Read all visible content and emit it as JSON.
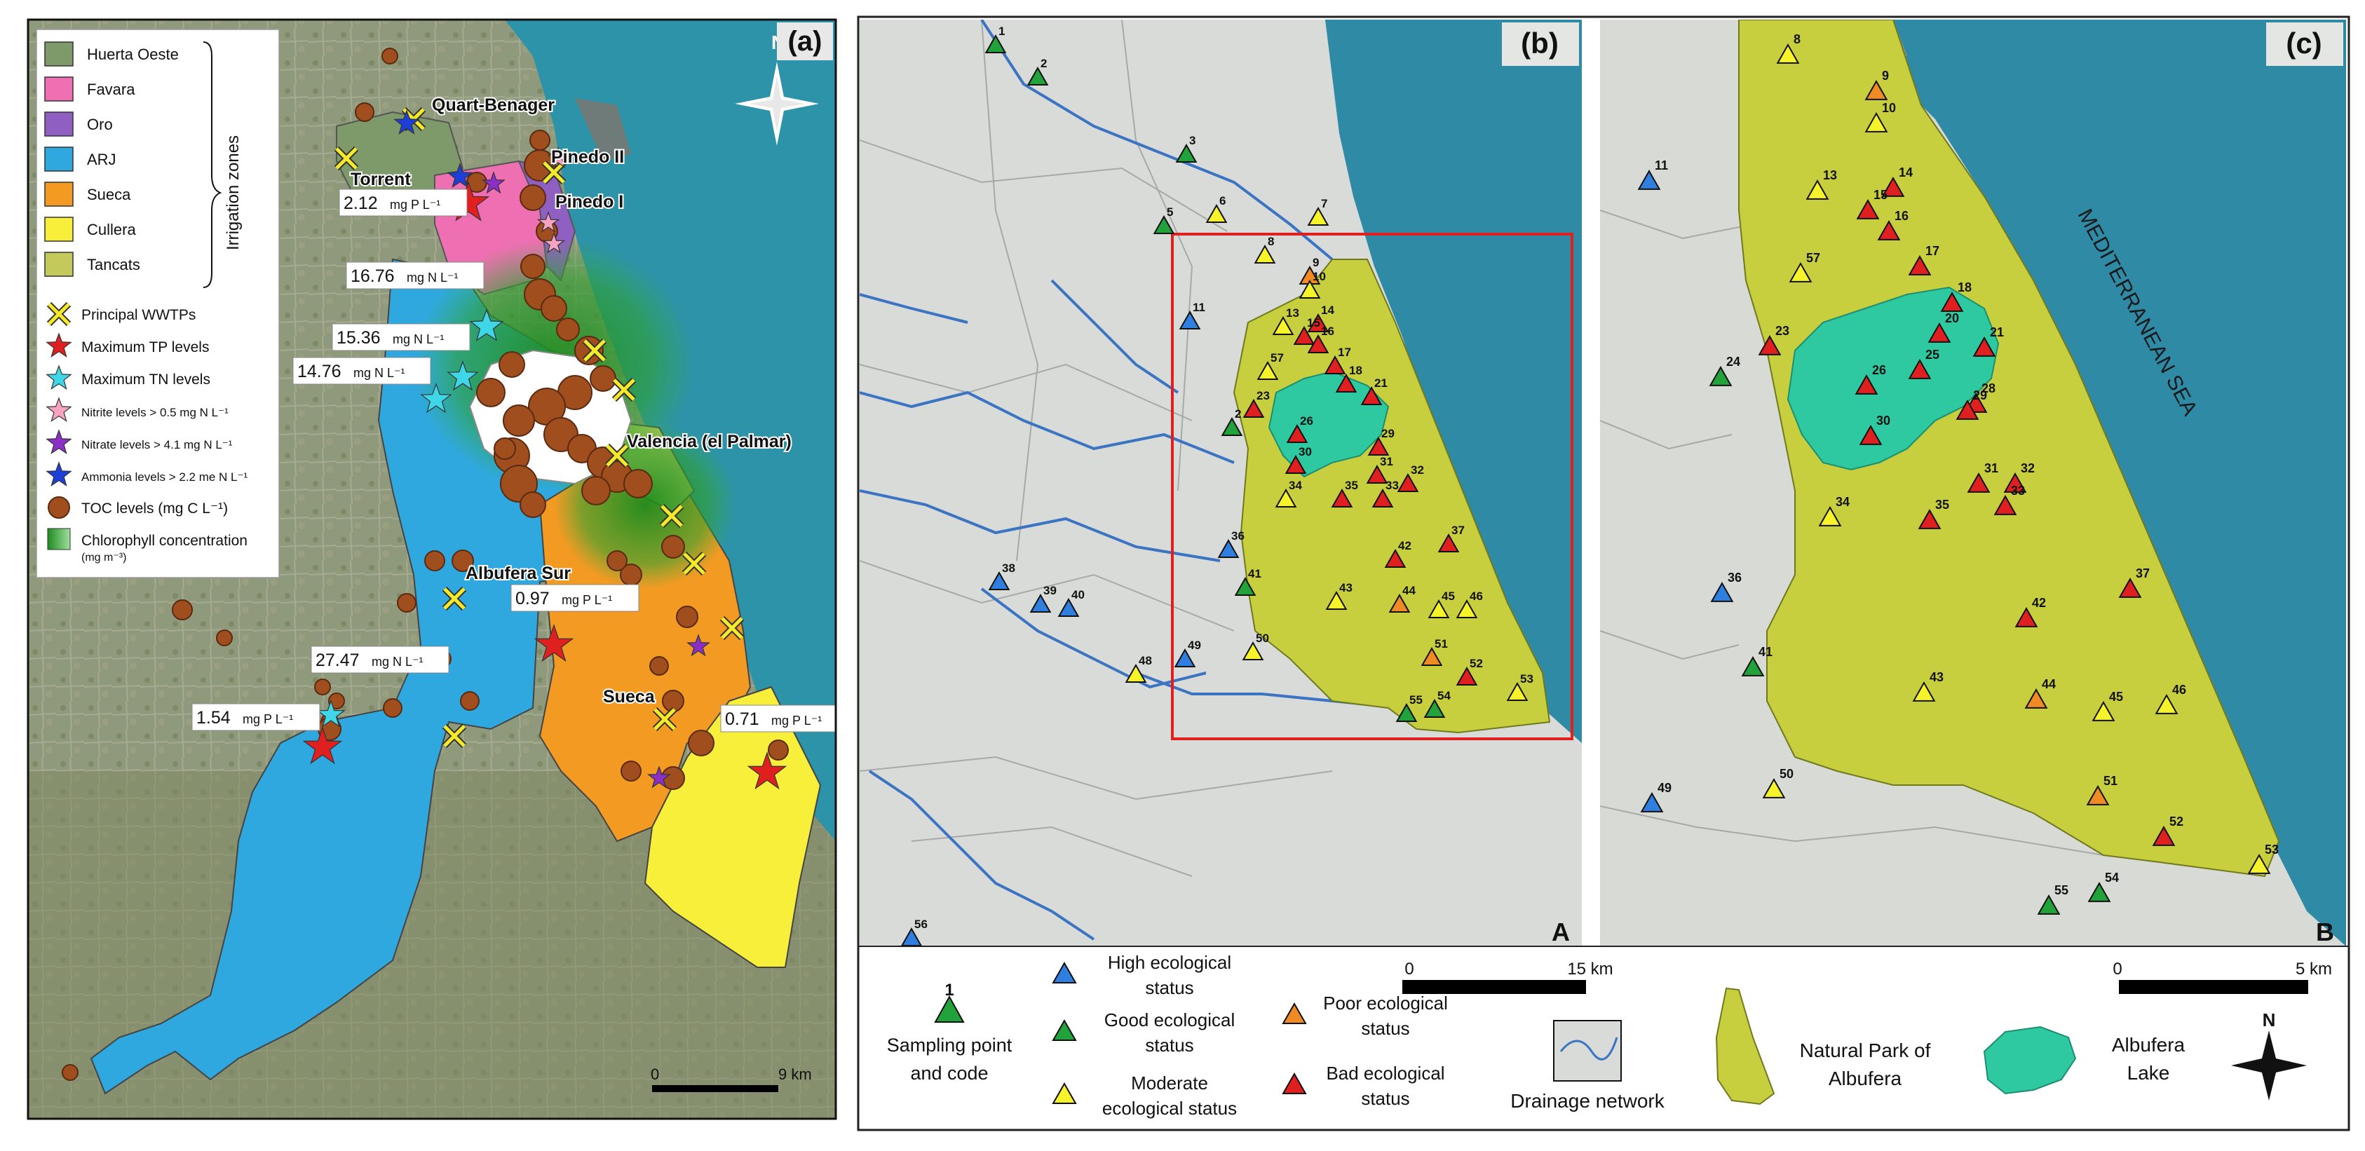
{
  "panels": {
    "a": {
      "label": "(a)",
      "north": "N",
      "scale": {
        "start": "0",
        "end": "9 km"
      },
      "legend": {
        "zones_title": "Irrigation zones",
        "zones": [
          {
            "name": "Huerta Oeste",
            "color": "#7f9a6a"
          },
          {
            "name": "Favara",
            "color": "#ef6fb3"
          },
          {
            "name": "Oro",
            "color": "#8f5fc2"
          },
          {
            "name": "ARJ",
            "color": "#2fa8e0"
          },
          {
            "name": "Sueca",
            "color": "#f39a23"
          },
          {
            "name": "Cullera",
            "color": "#f7ef3a"
          },
          {
            "name": "Tancats",
            "color": "#c3c95a"
          }
        ],
        "symbols": [
          {
            "label": "Principal WWTPs",
            "icon": "yellow-cross"
          },
          {
            "label": "Maximum TP levels",
            "icon": "red-star"
          },
          {
            "label": "Maximum TN levels",
            "icon": "cyan-star"
          },
          {
            "label": "Nitrite levels > 0.5 mg N L⁻¹",
            "icon": "pink-star"
          },
          {
            "label": "Nitrate levels > 4.1 mg N L⁻¹",
            "icon": "purple-star"
          },
          {
            "label": "Ammonia levels > 2.2 me N L⁻¹",
            "icon": "blue-star"
          },
          {
            "label": "TOC levels (mg C L⁻¹)",
            "icon": "brown-circle"
          },
          {
            "label": "Chlorophyll concentration",
            "label2": "(mg m⁻³)",
            "icon": "green-swatch"
          }
        ]
      },
      "places": [
        "Quart-Benager",
        "Torrent",
        "Pinedo II",
        "Pinedo I",
        "Valencia (el Palmar)",
        "Albufera Sur",
        "Sueca"
      ],
      "values": [
        {
          "value": "2.12",
          "unit": "mg P L⁻¹"
        },
        {
          "value": "16.76",
          "unit": "mg N L⁻¹"
        },
        {
          "value": "15.36",
          "unit": "mg N L⁻¹"
        },
        {
          "value": "14.76",
          "unit": "mg N L⁻¹"
        },
        {
          "value": "0.97",
          "unit": "mg P L⁻¹"
        },
        {
          "value": "27.47",
          "unit": "mg N L⁻¹"
        },
        {
          "value": "1.54",
          "unit": "mg P L⁻¹"
        },
        {
          "value": "0.71",
          "unit": "mg P L⁻¹"
        }
      ]
    },
    "b": {
      "label": "(b)",
      "corner": "A",
      "points": [
        {
          "code": "1",
          "status": "good"
        },
        {
          "code": "2",
          "status": "good"
        },
        {
          "code": "3",
          "status": "good"
        },
        {
          "code": "5",
          "status": "good"
        },
        {
          "code": "6",
          "status": "moderate"
        },
        {
          "code": "7",
          "status": "moderate"
        },
        {
          "code": "8",
          "status": "moderate"
        },
        {
          "code": "9",
          "status": "poor"
        },
        {
          "code": "10",
          "status": "moderate"
        },
        {
          "code": "11",
          "status": "high"
        },
        {
          "code": "13",
          "status": "moderate"
        },
        {
          "code": "14",
          "status": "bad"
        },
        {
          "code": "15",
          "status": "bad"
        },
        {
          "code": "16",
          "status": "bad"
        },
        {
          "code": "17",
          "status": "bad"
        },
        {
          "code": "57",
          "status": "moderate"
        },
        {
          "code": "18",
          "status": "bad"
        },
        {
          "code": "21",
          "status": "bad"
        },
        {
          "code": "23",
          "status": "bad"
        },
        {
          "code": "2",
          "status": "good"
        },
        {
          "code": "26",
          "status": "bad"
        },
        {
          "code": "30",
          "status": "bad"
        },
        {
          "code": "29",
          "status": "bad"
        },
        {
          "code": "31",
          "status": "bad"
        },
        {
          "code": "32",
          "status": "bad"
        },
        {
          "code": "33",
          "status": "bad"
        },
        {
          "code": "35",
          "status": "bad"
        },
        {
          "code": "34",
          "status": "moderate"
        },
        {
          "code": "36",
          "status": "high"
        },
        {
          "code": "37",
          "status": "bad"
        },
        {
          "code": "38",
          "status": "high"
        },
        {
          "code": "39",
          "status": "high"
        },
        {
          "code": "40",
          "status": "high"
        },
        {
          "code": "41",
          "status": "good"
        },
        {
          "code": "42",
          "status": "bad"
        },
        {
          "code": "43",
          "status": "moderate"
        },
        {
          "code": "44",
          "status": "poor"
        },
        {
          "code": "45",
          "status": "moderate"
        },
        {
          "code": "46",
          "status": "moderate"
        },
        {
          "code": "48",
          "status": "moderate"
        },
        {
          "code": "49",
          "status": "high"
        },
        {
          "code": "50",
          "status": "moderate"
        },
        {
          "code": "51",
          "status": "poor"
        },
        {
          "code": "52",
          "status": "bad"
        },
        {
          "code": "53",
          "status": "moderate"
        },
        {
          "code": "54",
          "status": "good"
        },
        {
          "code": "55",
          "status": "good"
        },
        {
          "code": "56",
          "status": "high"
        }
      ]
    },
    "c": {
      "label": "(c)",
      "corner": "B",
      "sea_label": "MEDITERRANEAN SEA",
      "points": [
        {
          "code": "8",
          "status": "moderate"
        },
        {
          "code": "9",
          "status": "poor"
        },
        {
          "code": "10",
          "status": "moderate"
        },
        {
          "code": "11",
          "status": "high"
        },
        {
          "code": "13",
          "status": "moderate"
        },
        {
          "code": "14",
          "status": "bad"
        },
        {
          "code": "15",
          "status": "bad"
        },
        {
          "code": "16",
          "status": "bad"
        },
        {
          "code": "17",
          "status": "bad"
        },
        {
          "code": "57",
          "status": "moderate"
        },
        {
          "code": "18",
          "status": "bad"
        },
        {
          "code": "20",
          "status": "bad"
        },
        {
          "code": "21",
          "status": "bad"
        },
        {
          "code": "23",
          "status": "bad"
        },
        {
          "code": "24",
          "status": "good"
        },
        {
          "code": "25",
          "status": "bad"
        },
        {
          "code": "26",
          "status": "bad"
        },
        {
          "code": "28",
          "status": "bad"
        },
        {
          "code": "29",
          "status": "bad"
        },
        {
          "code": "30",
          "status": "bad"
        },
        {
          "code": "31",
          "status": "bad"
        },
        {
          "code": "32",
          "status": "bad"
        },
        {
          "code": "33",
          "status": "bad"
        },
        {
          "code": "34",
          "status": "moderate"
        },
        {
          "code": "35",
          "status": "bad"
        },
        {
          "code": "36",
          "status": "high"
        },
        {
          "code": "37",
          "status": "bad"
        },
        {
          "code": "41",
          "status": "good"
        },
        {
          "code": "42",
          "status": "bad"
        },
        {
          "code": "43",
          "status": "moderate"
        },
        {
          "code": "44",
          "status": "poor"
        },
        {
          "code": "45",
          "status": "moderate"
        },
        {
          "code": "46",
          "status": "moderate"
        },
        {
          "code": "49",
          "status": "high"
        },
        {
          "code": "50",
          "status": "moderate"
        },
        {
          "code": "51",
          "status": "poor"
        },
        {
          "code": "52",
          "status": "bad"
        },
        {
          "code": "53",
          "status": "moderate"
        },
        {
          "code": "54",
          "status": "good"
        },
        {
          "code": "55",
          "status": "good"
        }
      ]
    }
  },
  "bottom_legend": {
    "sample_code": "1",
    "sampling_point": "Sampling point",
    "sampling_point2": "and code",
    "statuses": [
      {
        "key": "high",
        "line1": "High ecological",
        "line2": "status",
        "color": "#2f7fe0"
      },
      {
        "key": "good",
        "line1": "Good ecological",
        "line2": "status",
        "color": "#22a23a"
      },
      {
        "key": "moderate",
        "line1": "Moderate",
        "line2": "ecological status",
        "color": "#f6f32a"
      },
      {
        "key": "poor",
        "line1": "Poor ecological",
        "line2": "status",
        "color": "#f08a24"
      },
      {
        "key": "bad",
        "line1": "Bad ecological",
        "line2": "status",
        "color": "#e02020"
      }
    ],
    "scale_b": {
      "start": "0",
      "end": "15 km"
    },
    "scale_c": {
      "start": "0",
      "end": "5 km"
    },
    "drainage": "Drainage network",
    "park": {
      "line1": "Natural Park of",
      "line2": "Albufera",
      "color": "#c8cf3e"
    },
    "lake": {
      "line1": "Albufera",
      "line2": "Lake",
      "color": "#2ec9a0"
    },
    "north": "N"
  }
}
